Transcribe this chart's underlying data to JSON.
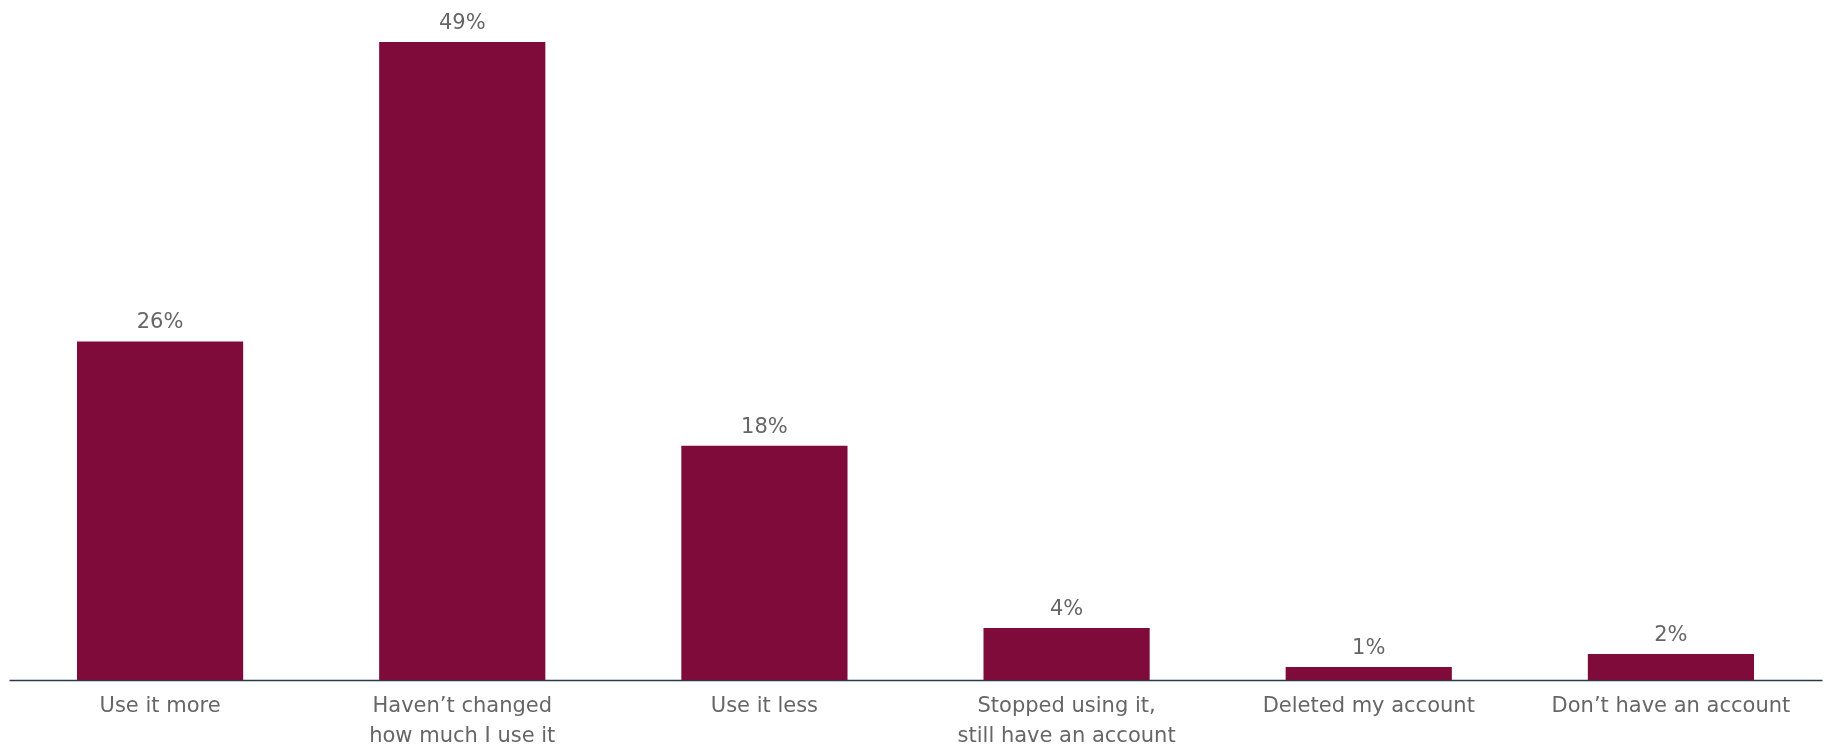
{
  "chart_data": {
    "type": "bar",
    "categories": [
      "Use it more",
      "Haven’t changed how much I use it",
      "Use it less",
      "Stopped using it, still have an account",
      "Deleted my account",
      "Don’t have an account"
    ],
    "values": [
      26,
      49,
      18,
      4,
      1,
      2
    ],
    "value_labels": [
      "26%",
      "49%",
      "18%",
      "4%",
      "1%",
      "2%"
    ],
    "color": "#7f0b3b",
    "tick_labels": "x"
  }
}
